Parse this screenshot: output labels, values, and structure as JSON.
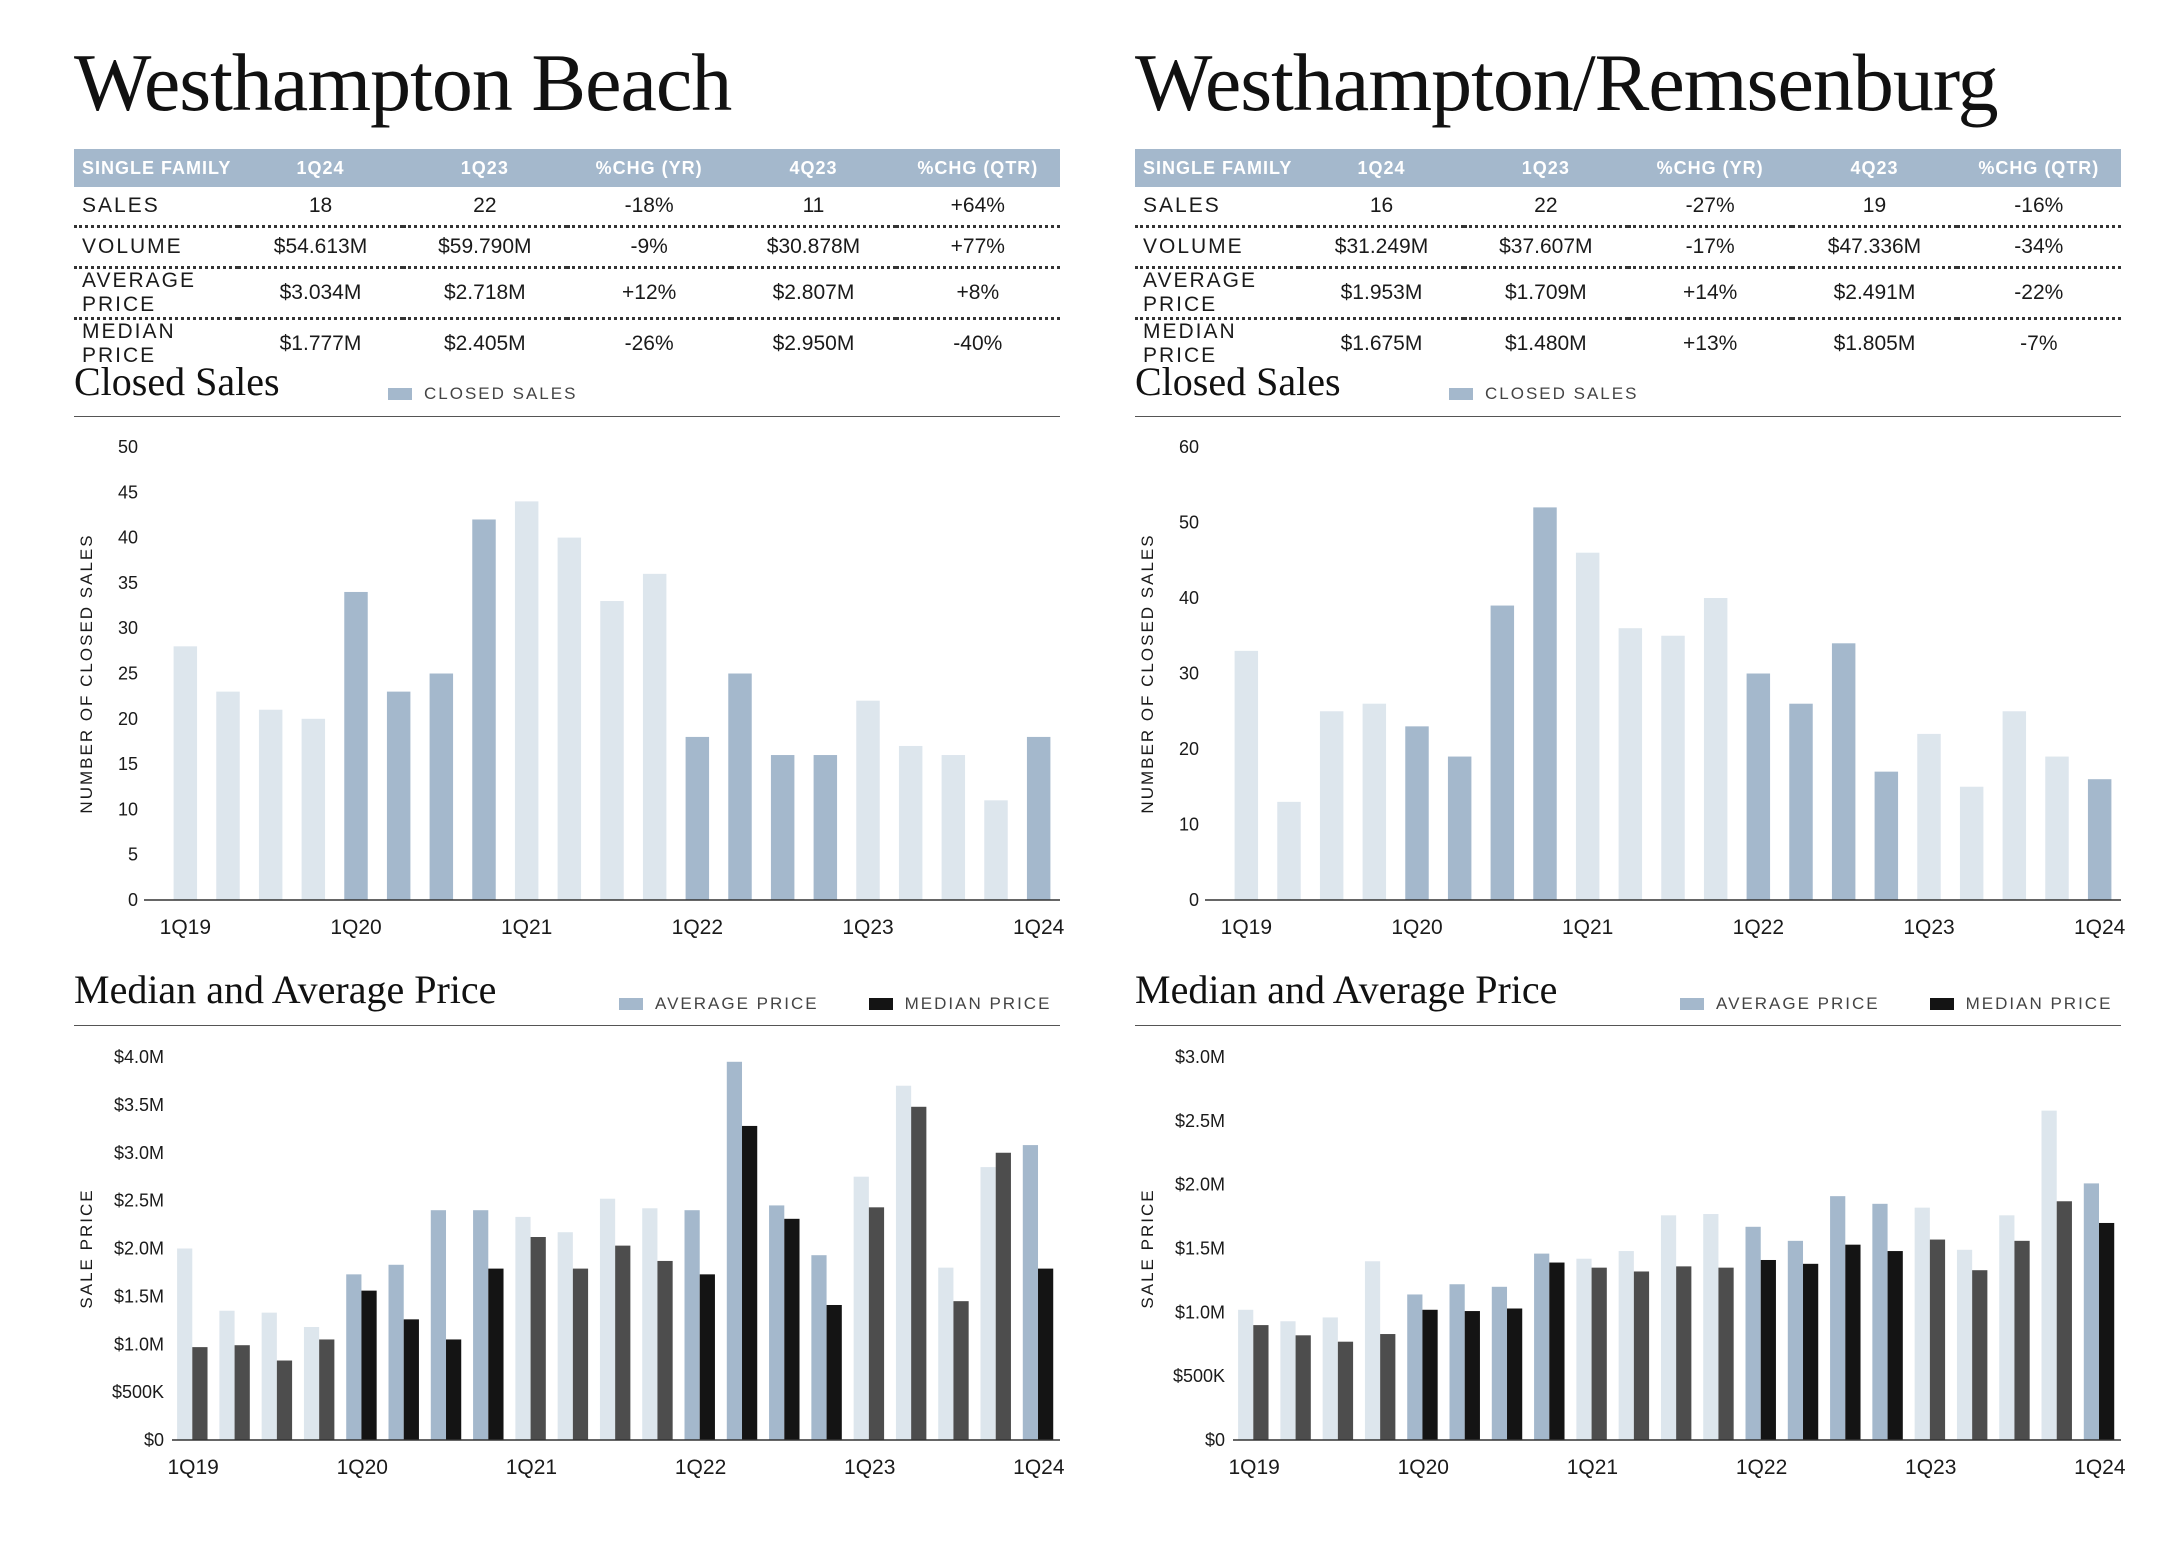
{
  "panels": [
    {
      "title": "Westhampton Beach",
      "table": {
        "headers": [
          "SINGLE FAMILY",
          "1Q24",
          "1Q23",
          "%CHG (YR)",
          "4Q23",
          "%CHG (QTR)"
        ],
        "rows": [
          [
            "SALES",
            "18",
            "22",
            "-18%",
            "11",
            "+64%"
          ],
          [
            "VOLUME",
            "$54.613M",
            "$59.790M",
            "-9%",
            "$30.878M",
            "+77%"
          ],
          [
            "AVERAGE PRICE",
            "$3.034M",
            "$2.718M",
            "+12%",
            "$2.807M",
            "+8%"
          ],
          [
            "MEDIAN PRICE",
            "$1.777M",
            "$2.405M",
            "-26%",
            "$2.950M",
            "-40%"
          ]
        ]
      },
      "closed_title": "Closed Sales",
      "closed_legend": "CLOSED SALES",
      "price_title": "Median and Average Price",
      "price_legend_avg": "AVERAGE PRICE",
      "price_legend_med": "MEDIAN PRICE"
    },
    {
      "title": "Westhampton/Remsenburg",
      "table": {
        "headers": [
          "SINGLE FAMILY",
          "1Q24",
          "1Q23",
          "%CHG (YR)",
          "4Q23",
          "%CHG (QTR)"
        ],
        "rows": [
          [
            "SALES",
            "16",
            "22",
            "-27%",
            "19",
            "-16%"
          ],
          [
            "VOLUME",
            "$31.249M",
            "$37.607M",
            "-17%",
            "$47.336M",
            "-34%"
          ],
          [
            "AVERAGE PRICE",
            "$1.953M",
            "$1.709M",
            "+14%",
            "$2.491M",
            "-22%"
          ],
          [
            "MEDIAN PRICE",
            "$1.675M",
            "$1.480M",
            "+13%",
            "$1.805M",
            "-7%"
          ]
        ]
      },
      "closed_title": "Closed Sales",
      "closed_legend": "CLOSED SALES",
      "price_title": "Median and Average Price",
      "price_legend_avg": "AVERAGE PRICE",
      "price_legend_med": "MEDIAN PRICE"
    }
  ],
  "colors": {
    "light": "#dde6ed",
    "dark": "#a4b8cc",
    "median_dark": "#4d4d4d",
    "median_black": "#141414"
  },
  "chart_data": [
    {
      "type": "bar",
      "title": "Closed Sales",
      "ylabel": "NUMBER OF CLOSED SALES",
      "legend": [
        "CLOSED SALES"
      ],
      "ylim": [
        0,
        50
      ],
      "yticks": [
        0,
        5,
        10,
        15,
        20,
        25,
        30,
        35,
        40,
        45,
        50
      ],
      "ytick_labels": [
        "0",
        "5",
        "10",
        "15",
        "20",
        "25",
        "30",
        "35",
        "40",
        "45",
        "50"
      ],
      "categories": [
        "1Q19",
        "2Q19",
        "3Q19",
        "4Q19",
        "1Q20",
        "2Q20",
        "3Q20",
        "4Q20",
        "1Q21",
        "2Q21",
        "3Q21",
        "4Q21",
        "1Q22",
        "2Q22",
        "3Q22",
        "4Q22",
        "1Q23",
        "2Q23",
        "3Q23",
        "4Q23",
        "1Q24"
      ],
      "x_tick_labels": {
        "0": "1Q19",
        "4": "1Q20",
        "8": "1Q21",
        "12": "1Q22",
        "16": "1Q23",
        "20": "1Q24"
      },
      "values": [
        28,
        23,
        21,
        20,
        34,
        23,
        25,
        42,
        44,
        40,
        33,
        36,
        18,
        25,
        16,
        16,
        22,
        17,
        16,
        11,
        18
      ],
      "highlight": [
        false,
        false,
        false,
        false,
        true,
        true,
        true,
        true,
        false,
        false,
        false,
        false,
        true,
        true,
        true,
        true,
        false,
        false,
        false,
        false,
        true
      ]
    },
    {
      "type": "bar",
      "title": "Median and Average Price",
      "ylabel": "SALE PRICE",
      "legend": [
        "AVERAGE PRICE",
        "MEDIAN PRICE"
      ],
      "ylim": [
        0,
        4.0
      ],
      "yticks": [
        0,
        0.5,
        1.0,
        1.5,
        2.0,
        2.5,
        3.0,
        3.5,
        4.0
      ],
      "ytick_labels": [
        "$0",
        "$500K",
        "$1.0M",
        "$1.5M",
        "$2.0M",
        "$2.5M",
        "$3.0M",
        "$3.5M",
        "$4.0M"
      ],
      "categories": [
        "1Q19",
        "2Q19",
        "3Q19",
        "4Q19",
        "1Q20",
        "2Q20",
        "3Q20",
        "4Q20",
        "1Q21",
        "2Q21",
        "3Q21",
        "4Q21",
        "1Q22",
        "2Q22",
        "3Q22",
        "4Q22",
        "1Q23",
        "2Q23",
        "3Q23",
        "4Q23",
        "1Q24"
      ],
      "x_tick_labels": {
        "0": "1Q19",
        "4": "1Q20",
        "8": "1Q21",
        "12": "1Q22",
        "16": "1Q23",
        "20": "1Q24"
      },
      "highlight": [
        false,
        false,
        false,
        false,
        true,
        true,
        true,
        true,
        false,
        false,
        false,
        false,
        true,
        true,
        true,
        true,
        false,
        false,
        false,
        false,
        true
      ],
      "series": [
        {
          "name": "AVERAGE PRICE",
          "values": [
            2.0,
            1.35,
            1.33,
            1.18,
            1.73,
            1.83,
            2.4,
            2.4,
            2.33,
            2.17,
            2.52,
            2.42,
            2.4,
            3.95,
            2.45,
            1.93,
            2.75,
            3.7,
            1.8,
            2.85,
            3.08
          ]
        },
        {
          "name": "MEDIAN PRICE",
          "values": [
            0.97,
            0.99,
            0.83,
            1.05,
            1.56,
            1.26,
            1.05,
            1.79,
            2.12,
            1.79,
            2.03,
            1.87,
            1.73,
            3.28,
            2.31,
            1.41,
            2.43,
            3.48,
            1.45,
            3.0,
            1.79
          ]
        }
      ]
    },
    {
      "type": "bar",
      "title": "Closed Sales",
      "ylabel": "NUMBER OF CLOSED SALES",
      "legend": [
        "CLOSED SALES"
      ],
      "ylim": [
        0,
        60
      ],
      "yticks": [
        0,
        10,
        20,
        30,
        40,
        50,
        60
      ],
      "ytick_labels": [
        "0",
        "10",
        "20",
        "30",
        "40",
        "50",
        "60"
      ],
      "categories": [
        "1Q19",
        "2Q19",
        "3Q19",
        "4Q19",
        "1Q20",
        "2Q20",
        "3Q20",
        "4Q20",
        "1Q21",
        "2Q21",
        "3Q21",
        "4Q21",
        "1Q22",
        "2Q22",
        "3Q22",
        "4Q22",
        "1Q23",
        "2Q23",
        "3Q23",
        "4Q23",
        "1Q24"
      ],
      "x_tick_labels": {
        "0": "1Q19",
        "4": "1Q20",
        "8": "1Q21",
        "12": "1Q22",
        "16": "1Q23",
        "20": "1Q24"
      },
      "values": [
        33,
        13,
        25,
        26,
        23,
        19,
        39,
        52,
        46,
        36,
        35,
        40,
        30,
        26,
        34,
        17,
        22,
        15,
        25,
        19,
        16
      ],
      "highlight": [
        false,
        false,
        false,
        false,
        true,
        true,
        true,
        true,
        false,
        false,
        false,
        false,
        true,
        true,
        true,
        true,
        false,
        false,
        false,
        false,
        true
      ]
    },
    {
      "type": "bar",
      "title": "Median and Average Price",
      "ylabel": "SALE PRICE",
      "legend": [
        "AVERAGE PRICE",
        "MEDIAN PRICE"
      ],
      "ylim": [
        0,
        3.0
      ],
      "yticks": [
        0,
        0.5,
        1.0,
        1.5,
        2.0,
        2.5,
        3.0
      ],
      "ytick_labels": [
        "$0",
        "$500K",
        "$1.0M",
        "$1.5M",
        "$2.0M",
        "$2.5M",
        "$3.0M"
      ],
      "categories": [
        "1Q19",
        "2Q19",
        "3Q19",
        "4Q19",
        "1Q20",
        "2Q20",
        "3Q20",
        "4Q20",
        "1Q21",
        "2Q21",
        "3Q21",
        "4Q21",
        "1Q22",
        "2Q22",
        "3Q22",
        "4Q22",
        "1Q23",
        "2Q23",
        "3Q23",
        "4Q23",
        "1Q24"
      ],
      "x_tick_labels": {
        "0": "1Q19",
        "4": "1Q20",
        "8": "1Q21",
        "12": "1Q22",
        "16": "1Q23",
        "20": "1Q24"
      },
      "highlight": [
        false,
        false,
        false,
        false,
        true,
        true,
        true,
        true,
        false,
        false,
        false,
        false,
        true,
        true,
        true,
        true,
        false,
        false,
        false,
        false,
        true
      ],
      "series": [
        {
          "name": "AVERAGE PRICE",
          "values": [
            1.02,
            0.93,
            0.96,
            1.4,
            1.14,
            1.22,
            1.2,
            1.46,
            1.42,
            1.48,
            1.76,
            1.77,
            1.67,
            1.56,
            1.91,
            1.85,
            1.82,
            1.49,
            1.76,
            2.58,
            2.01
          ]
        },
        {
          "name": "MEDIAN PRICE",
          "values": [
            0.9,
            0.82,
            0.77,
            0.83,
            1.02,
            1.01,
            1.03,
            1.39,
            1.35,
            1.32,
            1.36,
            1.35,
            1.41,
            1.38,
            1.53,
            1.48,
            1.57,
            1.33,
            1.56,
            1.87,
            1.7
          ]
        }
      ]
    }
  ]
}
